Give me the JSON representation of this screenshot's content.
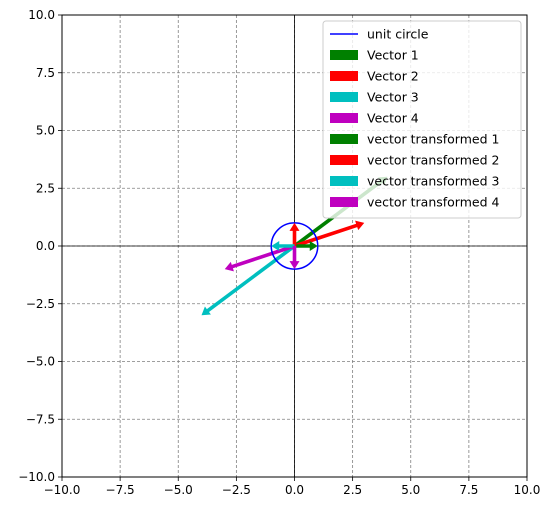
{
  "chart_data": {
    "type": "vector_plot",
    "title": "",
    "xlabel": "",
    "ylabel": "",
    "xlim": [
      -10,
      10
    ],
    "ylim": [
      -10,
      10
    ],
    "grid": true,
    "grid_style": "dashed",
    "axes_lines_at_origin": true,
    "x_ticks": [
      "−10.0",
      "−7.5",
      "−5.0",
      "−2.5",
      "0.0",
      "2.5",
      "5.0",
      "7.5",
      "10.0"
    ],
    "x_tick_values": [
      -10,
      -7.5,
      -5,
      -2.5,
      0,
      2.5,
      5,
      7.5,
      10
    ],
    "y_ticks": [
      "10.0",
      "7.5",
      "5.0",
      "2.5",
      "0.0",
      "−2.5",
      "−5.0",
      "−7.5",
      "−10.0"
    ],
    "y_tick_values": [
      10,
      7.5,
      5,
      2.5,
      0,
      -2.5,
      -5,
      -7.5,
      -10
    ],
    "unit_circle": {
      "name": "unit circle",
      "color": "#0000ff",
      "radius": 1,
      "center": [
        0,
        0
      ]
    },
    "vectors": [
      {
        "name": "Vector 1",
        "from": [
          0,
          0
        ],
        "to": [
          1,
          0
        ],
        "color": "#008000"
      },
      {
        "name": "Vector 2",
        "from": [
          0,
          0
        ],
        "to": [
          0,
          1
        ],
        "color": "#ff0000"
      },
      {
        "name": "Vector 3",
        "from": [
          0,
          0
        ],
        "to": [
          -1,
          0
        ],
        "color": "#00bfbf"
      },
      {
        "name": "Vector 4",
        "from": [
          0,
          0
        ],
        "to": [
          0,
          -1
        ],
        "color": "#bf00bf"
      }
    ],
    "transformed_vectors": [
      {
        "name": "vector transformed 1",
        "from": [
          0,
          0
        ],
        "to": [
          4,
          3
        ],
        "color": "#008000"
      },
      {
        "name": "vector transformed 2",
        "from": [
          0,
          0
        ],
        "to": [
          3,
          1
        ],
        "color": "#ff0000"
      },
      {
        "name": "vector transformed 3",
        "from": [
          0,
          0
        ],
        "to": [
          -4,
          -3
        ],
        "color": "#00bfbf"
      },
      {
        "name": "vector transformed 4",
        "from": [
          0,
          0
        ],
        "to": [
          -3,
          -1
        ],
        "color": "#bf00bf"
      }
    ],
    "legend": {
      "placement": "top-right",
      "entries": [
        {
          "label": "unit circle",
          "kind": "line",
          "color": "#0000ff"
        },
        {
          "label": "Vector 1",
          "kind": "patch",
          "color": "#008000"
        },
        {
          "label": "Vector 2",
          "kind": "patch",
          "color": "#ff0000"
        },
        {
          "label": "Vector 3",
          "kind": "patch",
          "color": "#00bfbf"
        },
        {
          "label": "Vector 4",
          "kind": "patch",
          "color": "#bf00bf"
        },
        {
          "label": "vector transformed 1",
          "kind": "patch",
          "color": "#008000"
        },
        {
          "label": "vector transformed 2",
          "kind": "patch",
          "color": "#ff0000"
        },
        {
          "label": "vector transformed 3",
          "kind": "patch",
          "color": "#00bfbf"
        },
        {
          "label": "vector transformed 4",
          "kind": "patch",
          "color": "#bf00bf"
        }
      ]
    }
  }
}
